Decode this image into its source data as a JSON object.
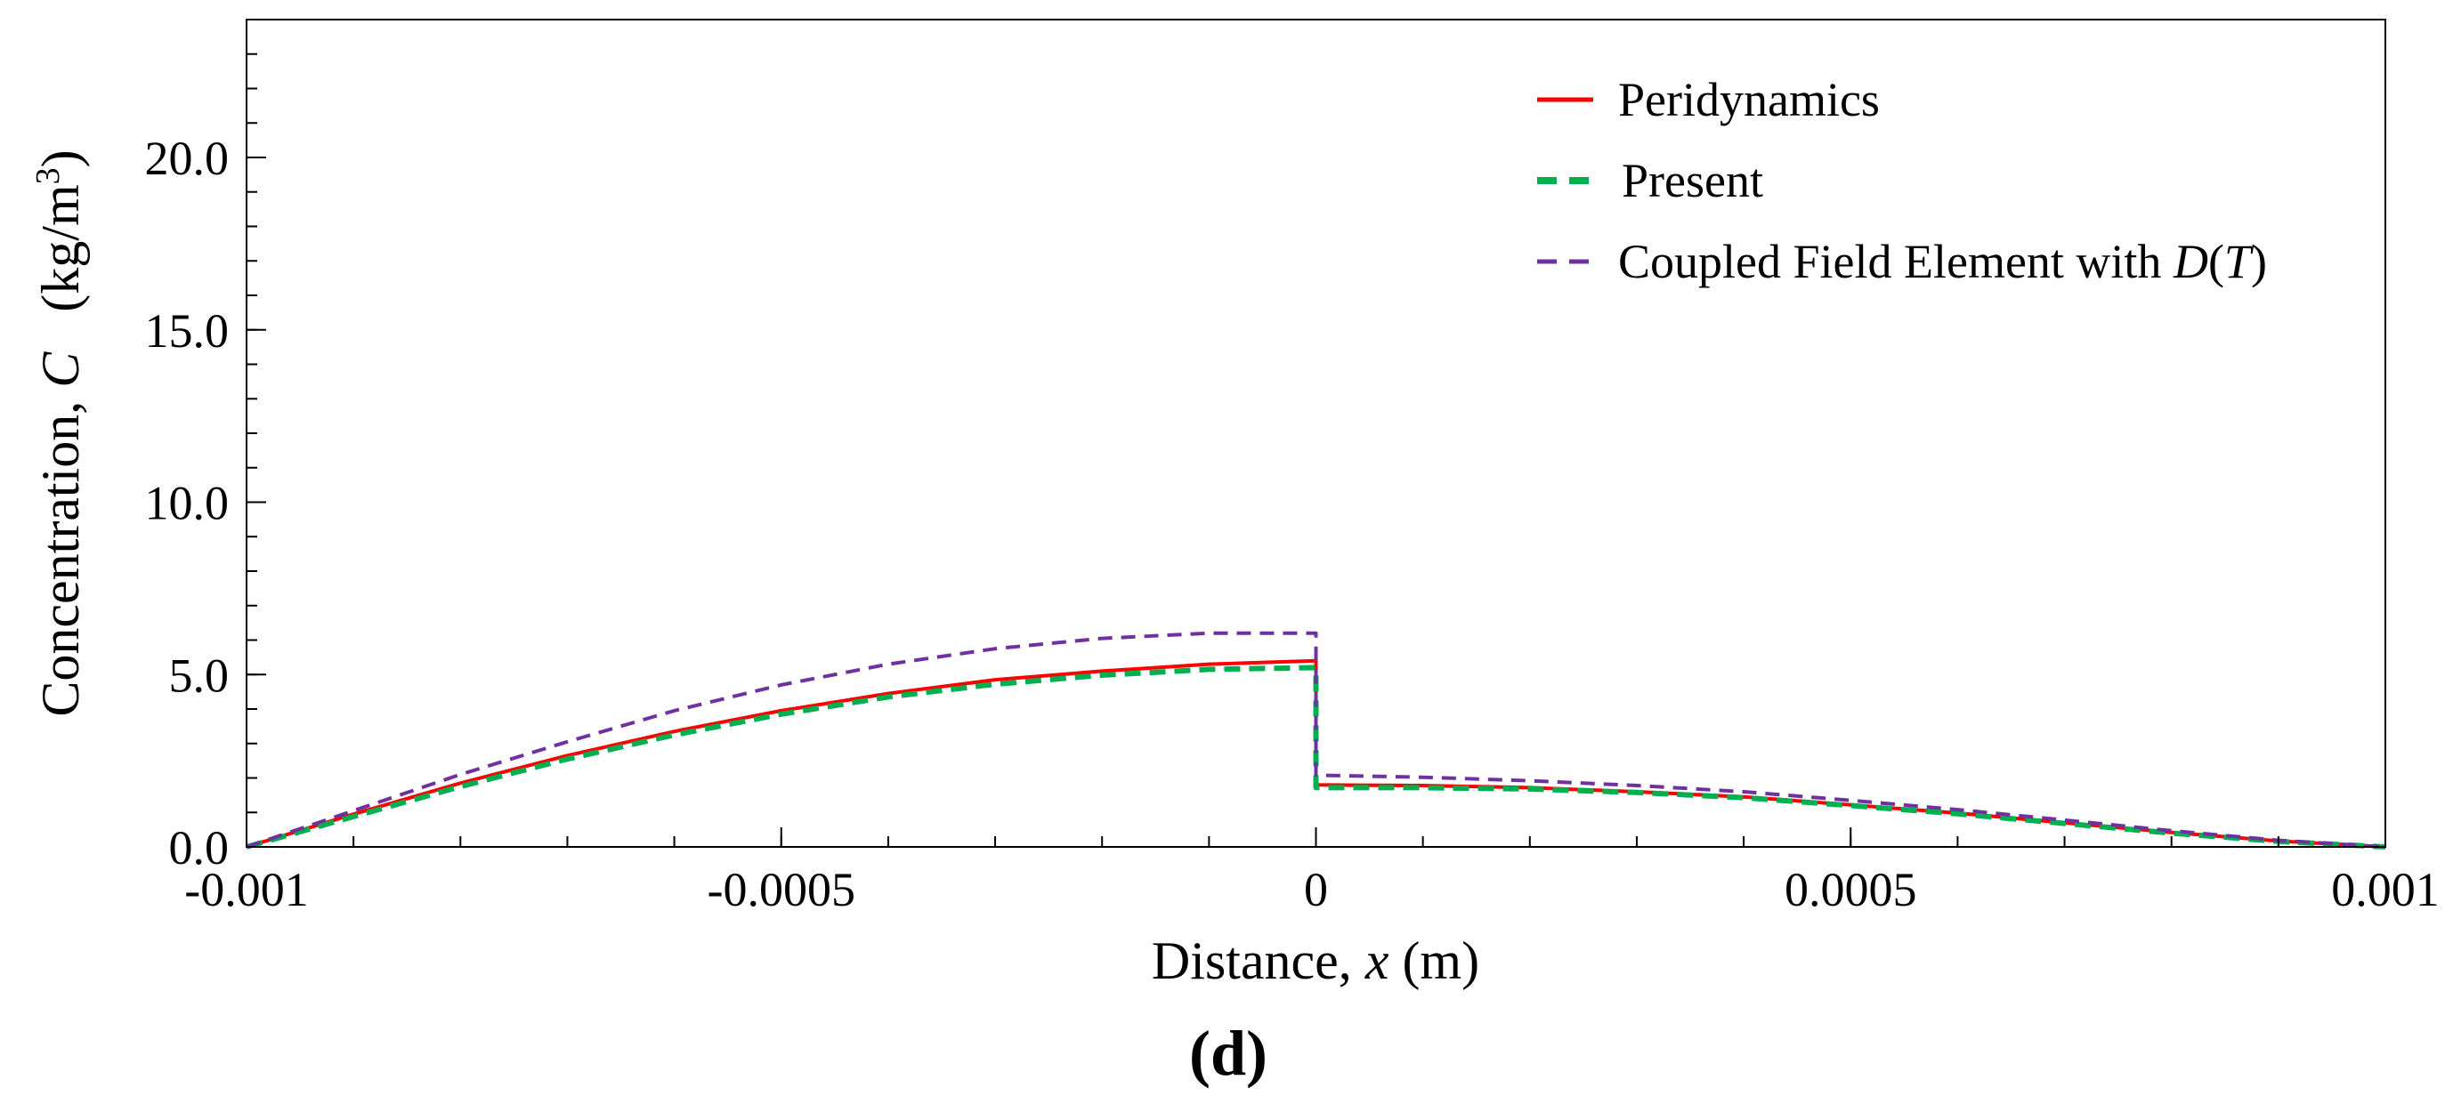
{
  "chart_data": {
    "type": "line",
    "title": "",
    "panel_label": "(d)",
    "xlabel_parts": [
      "Distance, ",
      "x",
      " (m)"
    ],
    "ylabel_parts": [
      "Concentration, ",
      "C",
      " (kg/m",
      "3",
      ")"
    ],
    "xlim": [
      -0.001,
      0.001
    ],
    "ylim": [
      0,
      24
    ],
    "x_ticks": [
      {
        "value": -0.001,
        "label": "-0.001"
      },
      {
        "value": -0.0005,
        "label": "-0.0005"
      },
      {
        "value": 0,
        "label": "0"
      },
      {
        "value": 0.0005,
        "label": "0.0005"
      },
      {
        "value": 0.001,
        "label": "0.001"
      }
    ],
    "x_minor_step": 0.0001,
    "y_ticks": [
      {
        "value": 0,
        "label": "0.0"
      },
      {
        "value": 5,
        "label": "5.0"
      },
      {
        "value": 10,
        "label": "10.0"
      },
      {
        "value": 15,
        "label": "15.0"
      },
      {
        "value": 20,
        "label": "20.0"
      }
    ],
    "y_minor_step": 1,
    "legend_position": "top-right",
    "series": [
      {
        "name": "Peridynamics",
        "color": "#ff0000",
        "dash": "solid",
        "x": [
          -0.001,
          -0.0009,
          -0.0008,
          -0.0007,
          -0.0006,
          -0.0005,
          -0.0004,
          -0.0003,
          -0.0002,
          -0.0001,
          0,
          0,
          0.0001,
          0.0002,
          0.0003,
          0.0004,
          0.0005,
          0.0006,
          0.0007,
          0.0008,
          0.0009,
          0.001
        ],
        "y": [
          0,
          0.95,
          1.85,
          2.65,
          3.35,
          3.95,
          4.45,
          4.85,
          5.1,
          5.3,
          5.4,
          1.8,
          1.78,
          1.72,
          1.6,
          1.45,
          1.22,
          0.98,
          0.7,
          0.42,
          0.17,
          0
        ]
      },
      {
        "name": "Present",
        "color": "#00b050",
        "dash": "dashed",
        "x": [
          -0.001,
          -0.0009,
          -0.0008,
          -0.0007,
          -0.0006,
          -0.0005,
          -0.0004,
          -0.0003,
          -0.0002,
          -0.0001,
          0,
          0,
          0.0001,
          0.0002,
          0.0003,
          0.0004,
          0.0005,
          0.0006,
          0.0007,
          0.0008,
          0.0009,
          0.001
        ],
        "y": [
          0,
          0.88,
          1.75,
          2.55,
          3.25,
          3.85,
          4.35,
          4.72,
          4.98,
          5.15,
          5.2,
          1.72,
          1.72,
          1.68,
          1.58,
          1.43,
          1.2,
          0.96,
          0.68,
          0.4,
          0.16,
          0
        ]
      },
      {
        "name": "Coupled Field Element with D(T)",
        "legend_parts": [
          "Coupled Field Element with ",
          "D",
          "(",
          "T",
          ")"
        ],
        "color": "#7030a0",
        "dash": "dashed",
        "x": [
          -0.001,
          -0.0009,
          -0.0008,
          -0.0007,
          -0.0006,
          -0.0005,
          -0.0004,
          -0.0003,
          -0.0002,
          -0.0001,
          0,
          0,
          0.0001,
          0.0002,
          0.0003,
          0.0004,
          0.0005,
          0.0006,
          0.0007,
          0.0008,
          0.0009,
          0.001
        ],
        "y": [
          0,
          1.05,
          2.1,
          3.05,
          3.95,
          4.7,
          5.3,
          5.75,
          6.05,
          6.2,
          6.2,
          2.08,
          2.02,
          1.92,
          1.78,
          1.6,
          1.35,
          1.08,
          0.78,
          0.47,
          0.19,
          0
        ]
      }
    ]
  }
}
